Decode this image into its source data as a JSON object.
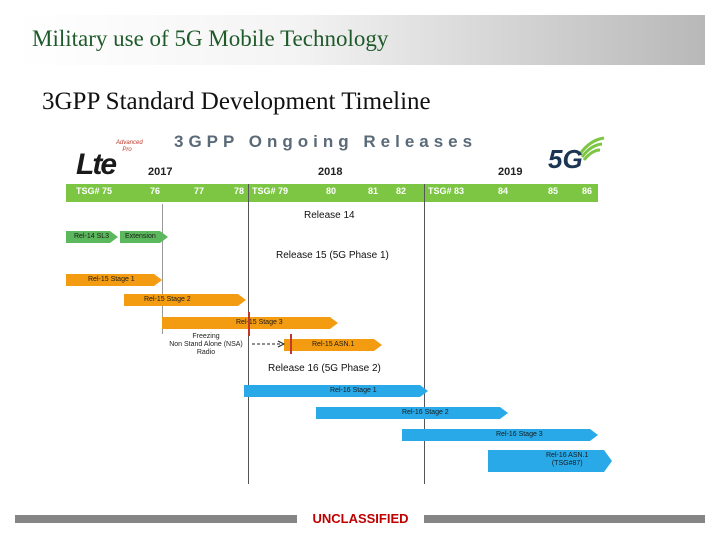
{
  "slide": {
    "title": "Military use of 5G Mobile Technology",
    "subtitle": "3GPP Standard Development Timeline",
    "classification": "UNCLASSIFIED"
  },
  "diagram": {
    "heading": "3GPP Ongoing Releases",
    "logos": {
      "lte": {
        "text": "Lte",
        "tag": "Advanced Pro"
      },
      "g5": {
        "text": "5G"
      }
    },
    "years": [
      "2017",
      "2018",
      "2019"
    ],
    "tsg_meetings": [
      {
        "label": "TSG# 75"
      },
      {
        "label": "76"
      },
      {
        "label": "77"
      },
      {
        "label": "78"
      },
      {
        "label": "TSG# 79"
      },
      {
        "label": "80"
      },
      {
        "label": "81"
      },
      {
        "label": "82"
      },
      {
        "label": "TSG# 83"
      },
      {
        "label": "84"
      },
      {
        "label": "85"
      },
      {
        "label": "86"
      }
    ],
    "releases": {
      "r14": "Release 14",
      "r15": "Release 15 (5G Phase 1)",
      "r16": "Release 16 (5G Phase 2)"
    },
    "bars": {
      "rel14_sl3": "Rel-14 SL3",
      "rel14_ext": "Extension",
      "rel15_s1": "Rel-15 Stage 1",
      "rel15_s2": "Rel-15 Stage 2",
      "rel15_s3": "Rel-15 Stage 3",
      "rel15_asn1": "Rel-15 ASN.1",
      "rel16_s1": "Rel-16 Stage 1",
      "rel16_s2": "Rel-16 Stage 2",
      "rel16_s3": "Rel-16 Stage 3",
      "rel16_asn1_line1": "Rel-16 ASN.1",
      "rel16_asn1_line2": "(TSG#87)"
    },
    "freeze_note": {
      "line1": "Freezing",
      "line2": "Non Stand Alone (NSA)",
      "line3": "Radio"
    },
    "colors": {
      "tsg": "#7cc644",
      "rel14": "#5cb85c",
      "rel15": "#f39c12",
      "rel16": "#2aa9e8",
      "freeze_mark": "#c0392b"
    }
  }
}
